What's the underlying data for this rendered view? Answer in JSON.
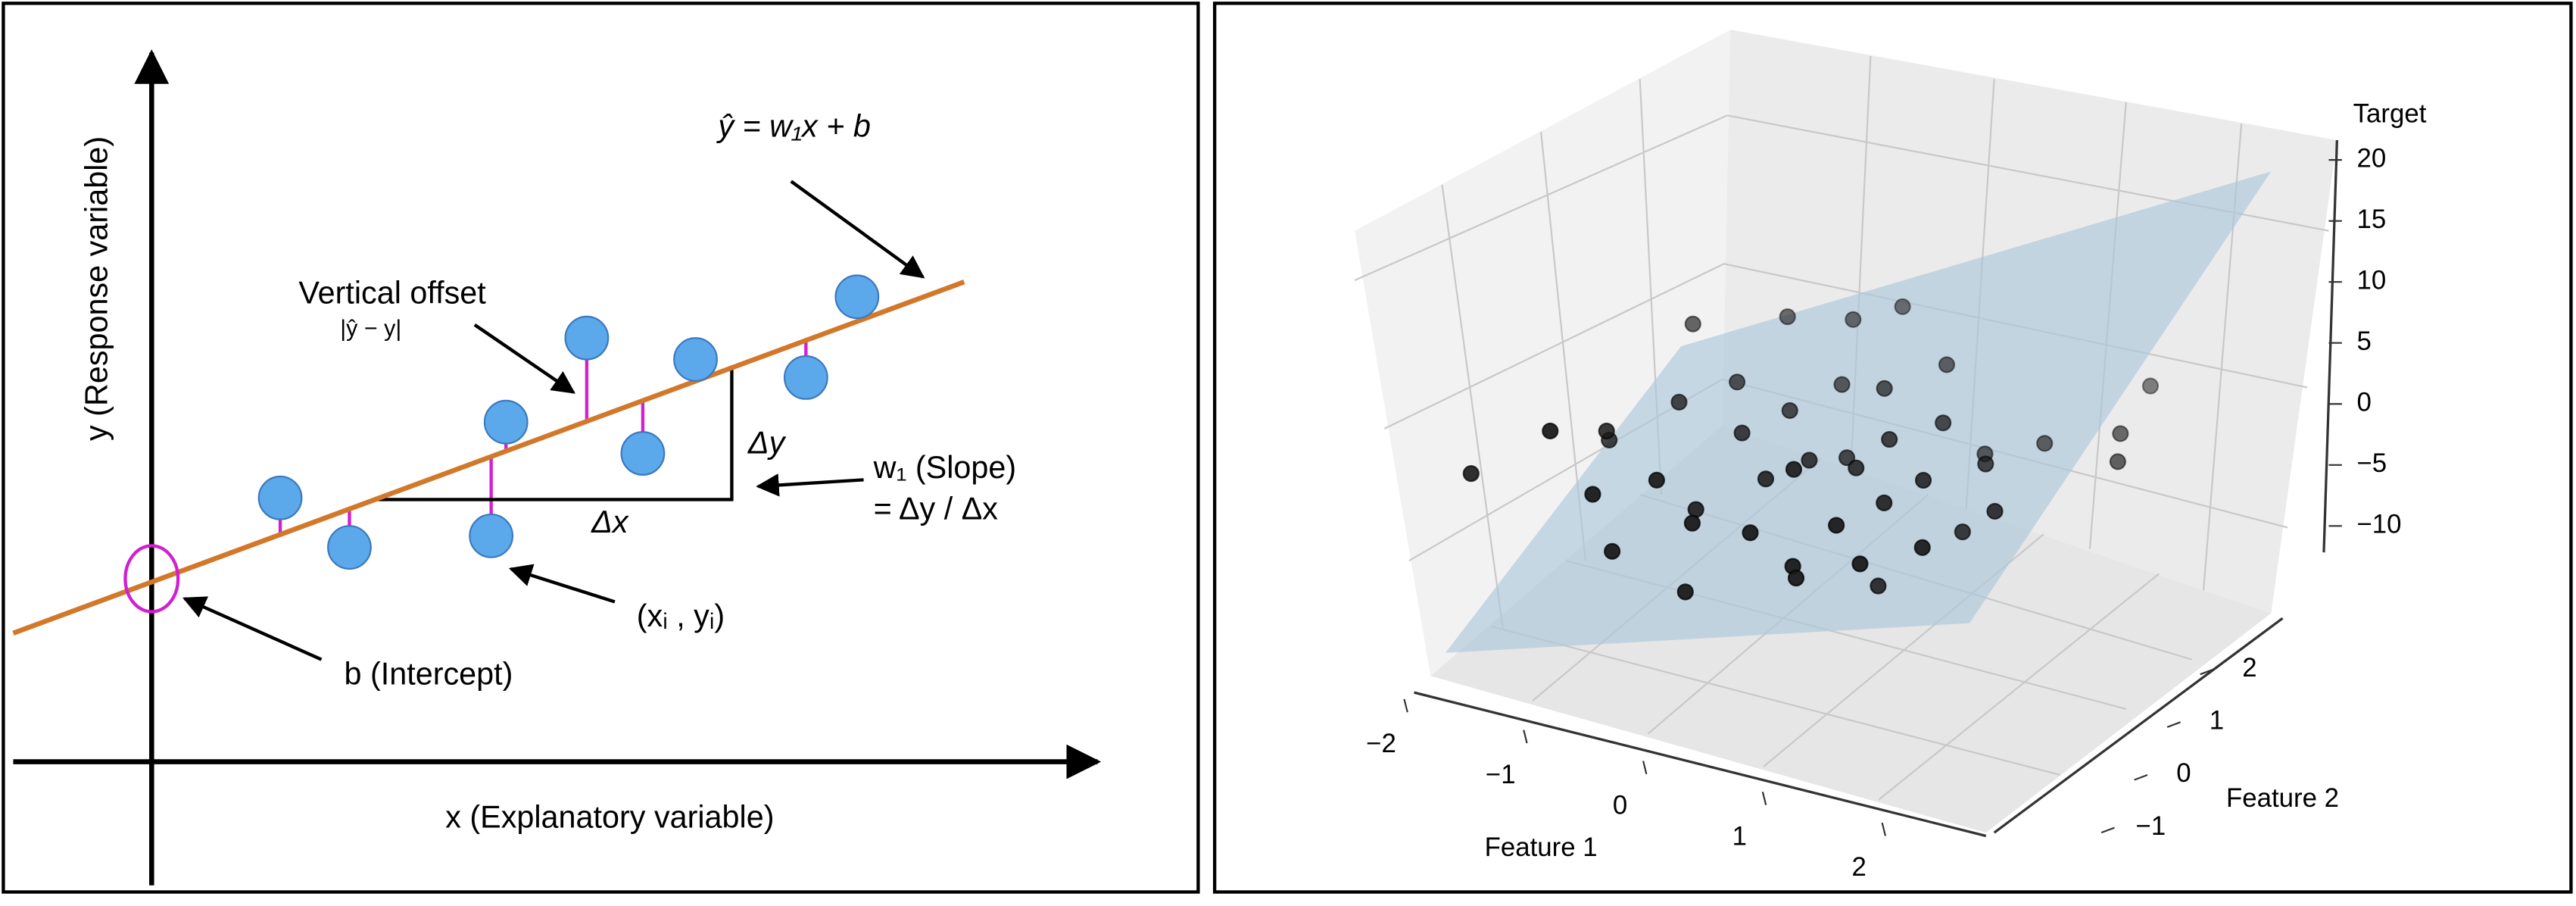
{
  "diagram": {
    "equation": "ŷ = w₁x + b",
    "vertical_offset": "Vertical offset",
    "vertical_offset_formula": "|ŷ − y|",
    "delta_y": "Δy",
    "delta_x": "Δx",
    "slope_label": "w₁ (Slope)",
    "slope_formula": "= Δy / Δx",
    "point_label": "(xᵢ , yᵢ)",
    "intercept_label": "b (Intercept)",
    "y_axis_label": "y (Response variable)",
    "x_axis_label": "x (Explanatory variable)"
  },
  "chart_data": {
    "type": "scatter3d",
    "xlabel": "Feature 1",
    "ylabel": "Feature 2",
    "zlabel": "Target",
    "xticks": [
      {
        "value": -2,
        "label": "−2"
      },
      {
        "value": -1,
        "label": "−1"
      },
      0,
      1,
      2
    ],
    "yticks": [
      {
        "value": -1,
        "label": "−1"
      },
      0,
      1,
      2
    ],
    "zticks": [
      {
        "value": -10,
        "label": "−10"
      },
      {
        "value": -5,
        "label": "−5"
      },
      0,
      5,
      10,
      15,
      20
    ],
    "x": [
      -1.5,
      -1.3,
      -1.0,
      -0.8,
      -0.6,
      -0.5,
      -0.3,
      -0.2,
      0.0,
      0.1,
      0.2,
      0.3,
      0.4,
      0.5,
      0.6,
      0.7,
      0.8,
      0.9,
      1.0,
      1.1,
      1.2,
      1.3,
      1.4,
      1.5,
      1.6,
      1.8,
      2.0,
      -1.8,
      -1.2,
      -0.9,
      -0.4,
      0.2,
      0.6,
      1.2,
      -0.1,
      -2.7,
      2.9,
      2.9,
      3.0,
      2.3,
      1.7,
      2.2,
      -1.6,
      0.9,
      1.9
    ],
    "y": [
      0.3,
      -0.5,
      0.8,
      -0.2,
      1.2,
      0.0,
      0.6,
      -0.8,
      1.0,
      0.2,
      -0.4,
      1.5,
      0.5,
      -0.1,
      0.9,
      -0.6,
      1.3,
      0.4,
      -0.3,
      0.7,
      1.8,
      0.1,
      -0.7,
      1.0,
      0.3,
      -0.2,
      0.8,
      -0.3,
      1.6,
      -1.0,
      1.9,
      2.0,
      2.2,
      0.2,
      -1.2,
      0.0,
      2.5,
      1.8,
      1.5,
      0.3,
      1.5,
      1.7,
      0.6,
      -1.0,
      0.5
    ],
    "z": [
      -6,
      -10,
      -3,
      -8,
      -1,
      -12,
      -4,
      -9,
      -2,
      -7,
      -11,
      0,
      -5,
      -3,
      -6,
      -13,
      2,
      -4,
      -8,
      -1,
      4,
      -6,
      -10,
      1,
      -3,
      -9,
      -2,
      -4,
      3,
      -14,
      5,
      6,
      8,
      -18,
      -16,
      -14,
      3,
      0,
      -2,
      -5,
      -5,
      -3,
      -9,
      -12,
      -10
    ]
  }
}
